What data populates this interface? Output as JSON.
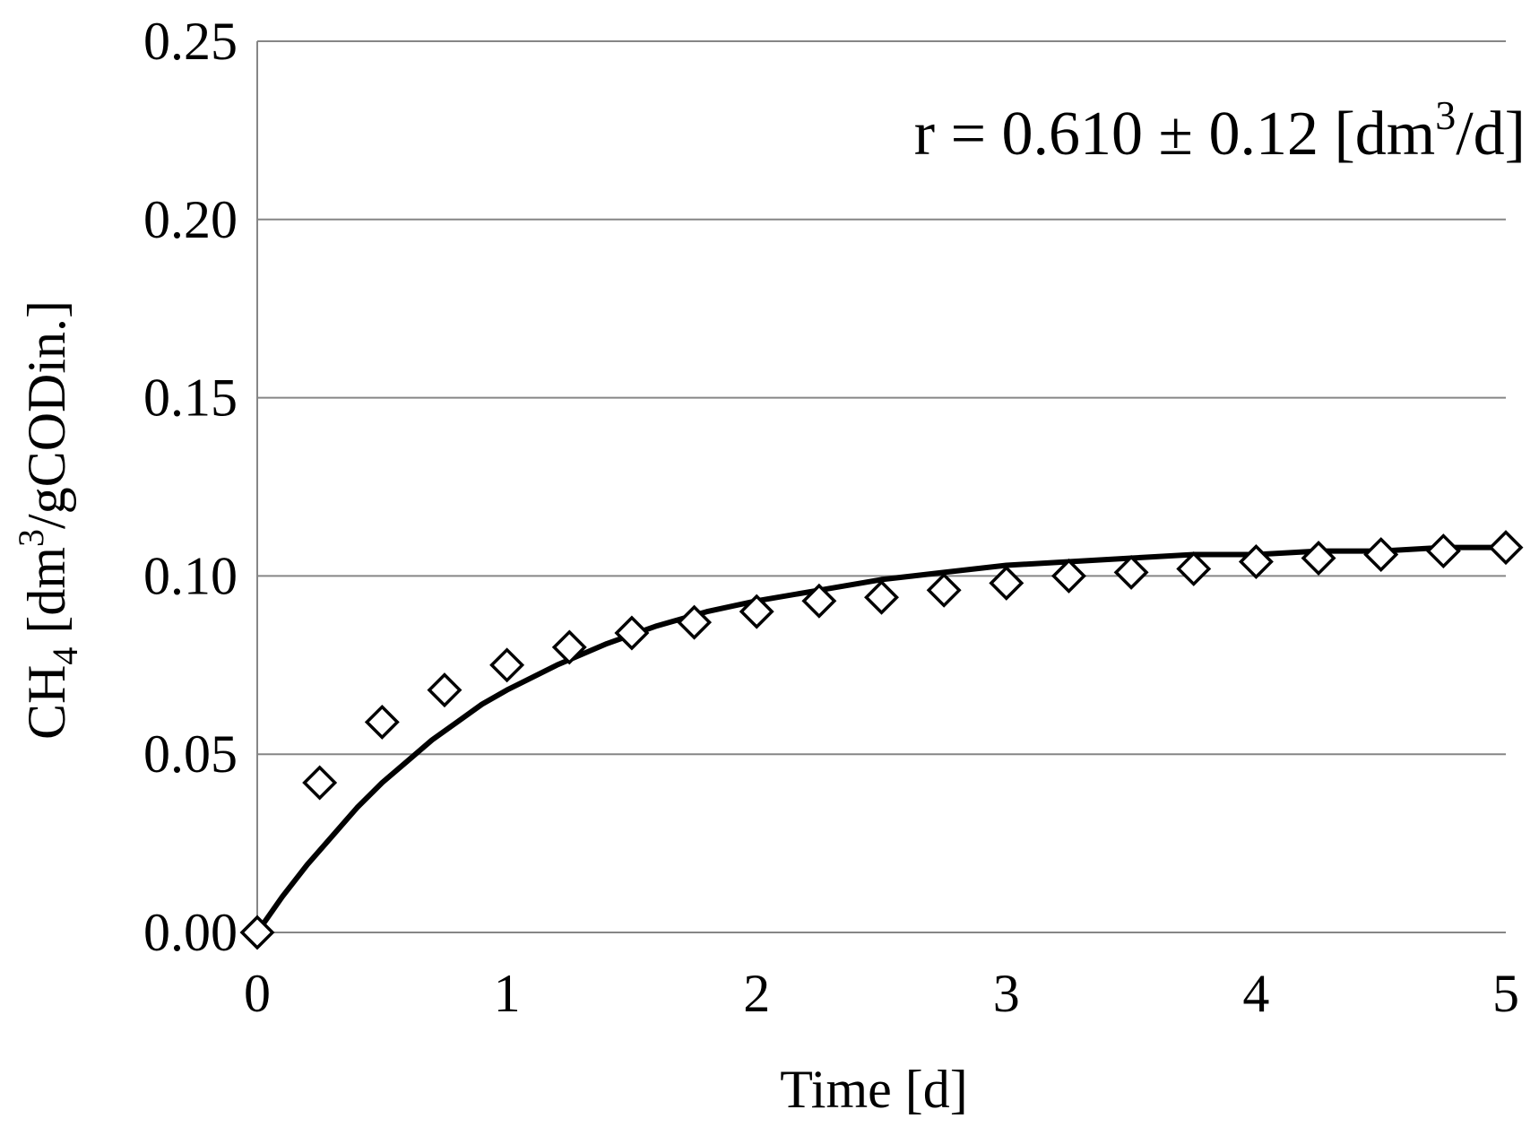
{
  "chart_data": {
    "type": "scatter",
    "title": "",
    "xlabel": "Time [d]",
    "ylabel": {
      "main": "CH",
      "sub": "4",
      "pre": " [dm",
      "sup": "3",
      "post": "/gCODin.]"
    },
    "annotation": {
      "pre": "r = 0.610 ± 0.12 [dm",
      "sup": "3",
      "post": "/d]",
      "position": "top-right"
    },
    "xlim": [
      0,
      5
    ],
    "ylim": [
      0,
      0.25
    ],
    "x_ticks": [
      "0",
      "1",
      "2",
      "3",
      "4",
      "5"
    ],
    "x_tick_values": [
      0,
      1,
      2,
      3,
      4,
      5
    ],
    "y_ticks": [
      "0.00",
      "0.05",
      "0.10",
      "0.15",
      "0.20",
      "0.25"
    ],
    "y_tick_values": [
      0,
      0.05,
      0.1,
      0.15,
      0.2,
      0.25
    ],
    "grid": "horizontal",
    "legend": "none",
    "series": [
      {
        "type": "scatter",
        "marker": "diamond-open",
        "color": "#000000",
        "x": [
          0,
          0.25,
          0.5,
          0.75,
          1.0,
          1.25,
          1.5,
          1.75,
          2.0,
          2.25,
          2.5,
          2.75,
          3.0,
          3.25,
          3.5,
          3.75,
          4.0,
          4.25,
          4.5,
          4.75,
          5.0
        ],
        "y": [
          0.0,
          0.042,
          0.059,
          0.068,
          0.075,
          0.08,
          0.084,
          0.087,
          0.09,
          0.093,
          0.094,
          0.096,
          0.098,
          0.1,
          0.101,
          0.102,
          0.104,
          0.105,
          0.106,
          0.107,
          0.108
        ]
      },
      {
        "type": "line",
        "color": "#000000",
        "x": [
          0,
          0.1,
          0.2,
          0.3,
          0.4,
          0.5,
          0.6,
          0.7,
          0.8,
          0.9,
          1.0,
          1.2,
          1.4,
          1.6,
          1.8,
          2.0,
          2.25,
          2.5,
          2.75,
          3.0,
          3.25,
          3.5,
          3.75,
          4.0,
          4.25,
          4.5,
          4.75,
          5.0
        ],
        "y": [
          0.0,
          0.01,
          0.019,
          0.027,
          0.035,
          0.042,
          0.048,
          0.054,
          0.059,
          0.064,
          0.068,
          0.075,
          0.081,
          0.086,
          0.09,
          0.093,
          0.096,
          0.099,
          0.101,
          0.103,
          0.104,
          0.105,
          0.106,
          0.106,
          0.107,
          0.107,
          0.108,
          0.108
        ]
      }
    ]
  }
}
